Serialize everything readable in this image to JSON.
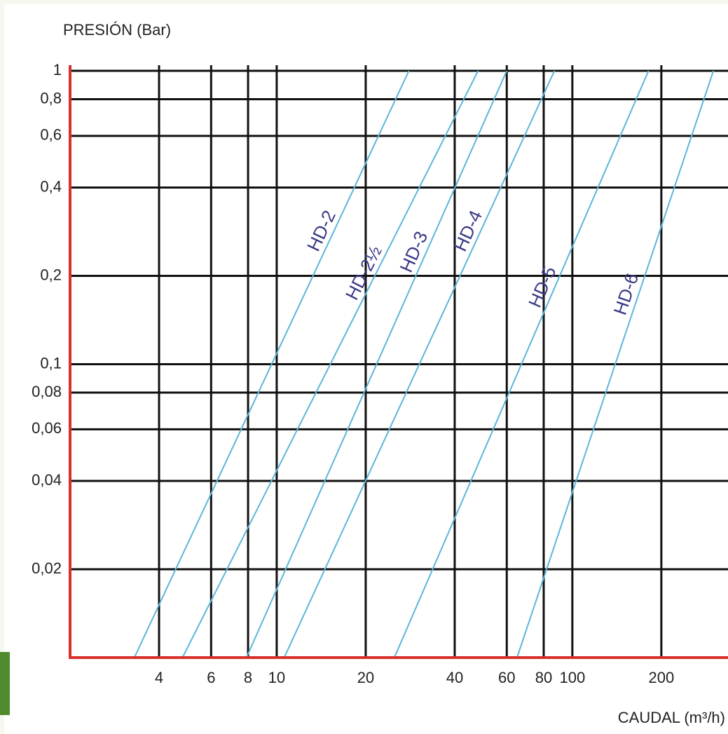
{
  "chart_data": {
    "type": "line",
    "ylabel": "PRESIÓN (Bar)",
    "xlabel": "CAUDAL (m³/h)",
    "xscale": "log",
    "yscale": "log",
    "grid": true,
    "xlim": [
      2,
      320
    ],
    "ylim": [
      0.01,
      1
    ],
    "xticks": [
      4,
      6,
      8,
      10,
      20,
      40,
      60,
      80,
      100,
      200
    ],
    "yticks": [
      1,
      {
        "value": 0.8,
        "label": "0,8"
      },
      {
        "value": 0.6,
        "label": "0,6"
      },
      {
        "value": 0.4,
        "label": "0,4"
      },
      {
        "value": 0.2,
        "label": "0,2"
      },
      {
        "value": 0.1,
        "label": "0,1"
      },
      {
        "value": 0.08,
        "label": "0,08"
      },
      {
        "value": 0.06,
        "label": "0,06"
      },
      {
        "value": 0.04,
        "label": "0,04"
      },
      {
        "value": 0.02,
        "label": "0,02"
      }
    ],
    "series": [
      {
        "name": "HD-2",
        "color": "#5bb6dc",
        "x": [
          3.3,
          28
        ],
        "values": [
          0.01,
          1
        ]
      },
      {
        "name": "HD-2½",
        "color": "#5bb6dc",
        "x": [
          4.8,
          48
        ],
        "values": [
          0.01,
          1
        ]
      },
      {
        "name": "HD-3",
        "color": "#5bb6dc",
        "x": [
          7.9,
          60
        ],
        "values": [
          0.01,
          1
        ]
      },
      {
        "name": "HD-4",
        "color": "#5bb6dc",
        "x": [
          10.6,
          87
        ],
        "values": [
          0.01,
          1
        ]
      },
      {
        "name": "HD-5",
        "color": "#5bb6dc",
        "x": [
          25,
          181
        ],
        "values": [
          0.01,
          1
        ]
      },
      {
        "name": "HD-6",
        "color": "#5bb6dc",
        "x": [
          65,
          300
        ],
        "values": [
          0.01,
          1
        ]
      }
    ]
  }
}
